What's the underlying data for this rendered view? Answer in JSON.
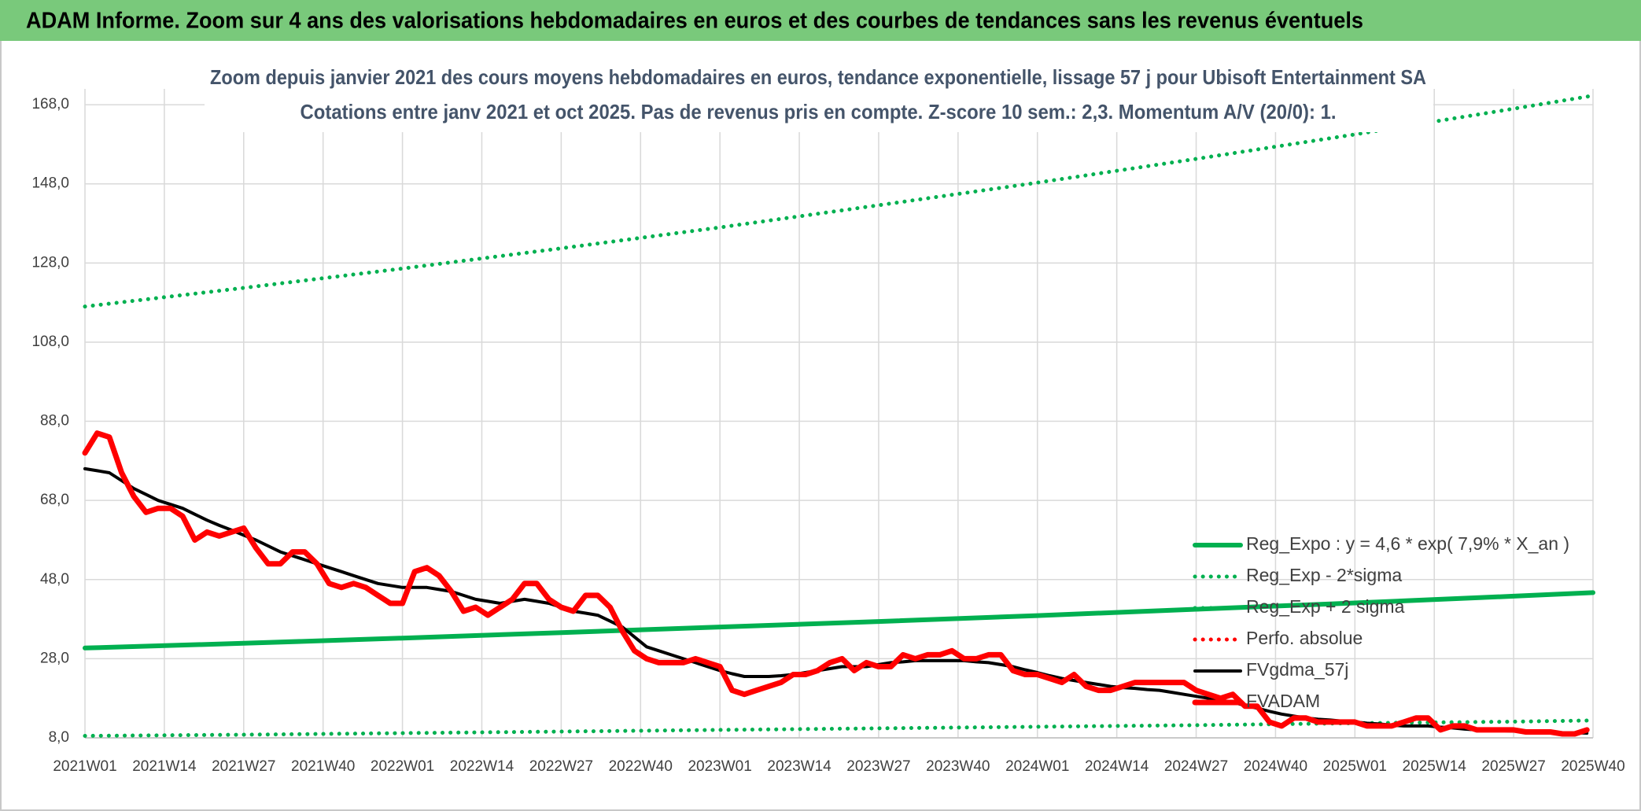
{
  "header": {
    "title": "ADAM Informe. Zoom sur 4 ans des valorisations hebdomadaires en euros et des courbes de tendances sans les revenus éventuels"
  },
  "chart_data": {
    "type": "line",
    "title": "Zoom depuis janvier 2021 des cours moyens hebdomadaires en euros, tendance exponentielle, lissage 57 j pour Ubisoft Entertainment SA",
    "subtitle": "Cotations entre janv 2021 et oct 2025. Pas de revenus pris en compte. Z-score 10 sem.: 2,3. Momentum A/V (20/0): 1.",
    "xlim": [
      0,
      247
    ],
    "ylim": [
      8,
      172
    ],
    "grid": true,
    "legend": "right",
    "xticks": [
      {
        "value": 0,
        "label": "2021W01"
      },
      {
        "value": 13,
        "label": "2021W14"
      },
      {
        "value": 26,
        "label": "2021W27"
      },
      {
        "value": 39,
        "label": "2021W40"
      },
      {
        "value": 52,
        "label": "2022W01"
      },
      {
        "value": 65,
        "label": "2022W14"
      },
      {
        "value": 78,
        "label": "2022W27"
      },
      {
        "value": 91,
        "label": "2022W40"
      },
      {
        "value": 104,
        "label": "2023W01"
      },
      {
        "value": 117,
        "label": "2023W14"
      },
      {
        "value": 130,
        "label": "2023W27"
      },
      {
        "value": 143,
        "label": "2023W40"
      },
      {
        "value": 156,
        "label": "2024W01"
      },
      {
        "value": 169,
        "label": "2024W14"
      },
      {
        "value": 182,
        "label": "2024W27"
      },
      {
        "value": 195,
        "label": "2024W40"
      },
      {
        "value": 208,
        "label": "2025W01"
      },
      {
        "value": 221,
        "label": "2025W14"
      },
      {
        "value": 234,
        "label": "2025W27"
      },
      {
        "value": 247,
        "label": "2025W40"
      }
    ],
    "yticks": [
      {
        "value": 8,
        "label": "8,0"
      },
      {
        "value": 28,
        "label": "28,0"
      },
      {
        "value": 48,
        "label": "48,0"
      },
      {
        "value": 68,
        "label": "68,0"
      },
      {
        "value": 88,
        "label": "88,0"
      },
      {
        "value": 108,
        "label": "108,0"
      },
      {
        "value": 128,
        "label": "128,0"
      },
      {
        "value": 148,
        "label": "148,0"
      },
      {
        "value": 168,
        "label": "168,0"
      }
    ],
    "x": [
      0,
      2,
      4,
      6,
      8,
      10,
      12,
      14,
      16,
      18,
      20,
      22,
      24,
      26,
      28,
      30,
      32,
      34,
      36,
      38,
      40,
      42,
      44,
      46,
      48,
      50,
      52,
      54,
      56,
      58,
      60,
      62,
      64,
      66,
      68,
      70,
      72,
      74,
      76,
      78,
      80,
      82,
      84,
      86,
      88,
      90,
      92,
      94,
      96,
      98,
      100,
      102,
      104,
      106,
      108,
      110,
      112,
      114,
      116,
      118,
      120,
      122,
      124,
      126,
      128,
      130,
      132,
      134,
      136,
      138,
      140,
      142,
      144,
      146,
      148,
      150,
      152,
      154,
      156,
      158,
      160,
      162,
      164,
      166,
      168,
      170,
      172,
      174,
      176,
      178,
      180,
      182,
      184,
      186,
      188,
      190,
      192,
      194,
      196,
      198,
      200,
      202,
      204,
      206,
      208,
      210,
      212,
      214,
      216,
      218,
      220,
      222,
      224,
      226,
      228,
      230,
      232,
      234,
      236,
      238,
      240,
      242,
      244,
      246
    ],
    "series": [
      {
        "name": "Reg_Expo : y = 4,6 * exp( 7,9% *  X_an )",
        "color": "#00b050",
        "style": "solid",
        "x": [
          0,
          26,
          52,
          78,
          104,
          130,
          156,
          182,
          208,
          234,
          247
        ],
        "values": [
          30.7,
          31.9,
          33.2,
          34.6,
          36.0,
          37.4,
          38.9,
          40.5,
          42.1,
          43.8,
          44.7
        ]
      },
      {
        "name": "Reg_Exp - 2*sigma",
        "color": "#00b050",
        "style": "dotted",
        "x": [
          0,
          26,
          52,
          78,
          104,
          130,
          156,
          182,
          208,
          234,
          247
        ],
        "values": [
          8.5,
          8.8,
          9.2,
          9.6,
          10.0,
          10.4,
          10.8,
          11.2,
          11.7,
          12.1,
          12.4
        ]
      },
      {
        "name": "Reg_Exp + 2 sigma",
        "color": "#00b050",
        "style": "dotted",
        "x": [
          0,
          26,
          52,
          78,
          104,
          130,
          156,
          182,
          208,
          234,
          247
        ],
        "values": [
          117,
          121.7,
          126.6,
          131.7,
          137.0,
          142.6,
          148.3,
          154.3,
          160.5,
          167.0,
          170.3
        ]
      },
      {
        "name": "Perfo. absolue",
        "color": "#ff0000",
        "style": "dotted"
      },
      {
        "name": "FVgdma_57j",
        "color": "#000000",
        "style": "solid",
        "values": [
          76,
          75.5,
          75,
          73,
          71,
          69.5,
          68,
          67,
          66,
          64.5,
          63,
          61.7,
          60.5,
          59.2,
          58,
          56.5,
          55,
          54,
          53,
          52,
          51,
          50,
          49,
          48,
          47,
          46.5,
          46,
          46,
          46,
          45.5,
          45,
          44,
          43,
          42.5,
          42,
          42.5,
          43,
          42.5,
          42,
          41,
          40,
          39.5,
          39,
          37.5,
          36,
          33.5,
          31,
          30,
          29,
          28,
          27,
          26,
          25,
          24.2,
          23.5,
          23.5,
          23.5,
          23.7,
          24,
          24.5,
          25,
          25.5,
          26,
          26,
          26,
          26.5,
          27,
          27.2,
          27.5,
          27.5,
          27.5,
          27.5,
          27.5,
          27.2,
          27,
          26.5,
          26,
          25.2,
          24.5,
          23.7,
          23,
          22.5,
          22,
          21.5,
          21,
          20.7,
          20.5,
          20.2,
          20,
          19.5,
          19,
          18.5,
          18,
          17.5,
          17,
          16.2,
          15.5,
          14.7,
          14,
          13.5,
          13,
          12.7,
          12.5,
          12.2,
          12,
          11.7,
          11.5,
          11.2,
          11,
          11,
          11,
          10.7,
          10.5,
          10.2,
          10,
          9.9,
          9.8,
          9.7,
          9.6,
          9.5,
          9.4,
          9.3,
          9.3,
          9.2
        ]
      },
      {
        "name": "FVADAM",
        "color": "#ff0000",
        "style": "solid",
        "values": [
          80,
          85,
          84,
          75,
          69,
          65,
          66,
          66,
          64,
          58,
          60,
          59,
          60,
          61,
          56,
          52,
          52,
          55,
          55,
          52,
          47,
          46,
          47,
          46,
          44,
          42,
          42,
          50,
          51,
          49,
          45,
          40,
          41,
          39,
          41,
          43,
          47,
          47,
          43,
          41,
          40,
          44,
          44,
          41,
          35,
          30,
          28,
          27,
          27,
          27,
          28,
          27,
          26,
          20,
          19,
          20,
          21,
          22,
          24,
          24,
          25,
          27,
          28,
          25,
          27,
          26,
          26,
          29,
          28,
          29,
          29,
          30,
          28,
          28,
          29,
          29,
          25,
          24,
          24,
          23,
          22,
          24,
          21,
          20,
          20,
          21,
          22,
          22,
          22,
          22,
          22,
          20,
          19,
          18,
          19,
          16,
          16,
          12,
          11,
          13,
          13,
          12,
          12,
          12,
          12,
          11,
          11,
          11,
          12,
          13,
          13,
          10,
          11,
          11,
          10,
          10,
          10,
          10,
          9.5,
          9.5,
          9.5,
          9,
          9,
          10
        ]
      }
    ]
  }
}
